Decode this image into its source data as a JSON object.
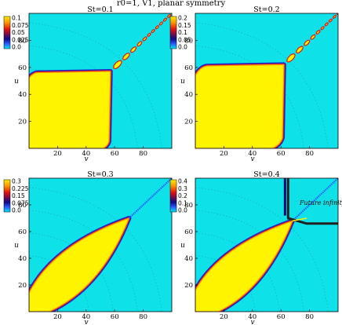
{
  "figure": {
    "title": "r0=1, V1, planar symmetry"
  },
  "chart_data": [
    {
      "type": "heatmap",
      "title": "St=0.1",
      "xlabel": "v",
      "ylabel": "u",
      "xticks": [
        20,
        40,
        60,
        80
      ],
      "yticks": [
        20,
        40,
        60,
        80
      ],
      "xlim": [
        0,
        100
      ],
      "ylim": [
        0,
        100
      ],
      "colorbar": {
        "ticks": [
          "0.1",
          "0.075",
          "0.05",
          "0.025",
          "0.0"
        ],
        "range": [
          0.0,
          0.1
        ]
      },
      "region": {
        "corner": [
          57,
          57
        ],
        "band_start": 5,
        "shape": "square",
        "beads": true
      },
      "annotation": ""
    },
    {
      "type": "heatmap",
      "title": "St=0.2",
      "xlabel": "v",
      "ylabel": "u",
      "xticks": [
        20,
        40,
        60,
        80
      ],
      "yticks": [
        20,
        40,
        60,
        80
      ],
      "xlim": [
        0,
        100
      ],
      "ylim": [
        0,
        100
      ],
      "colorbar": {
        "ticks": [
          "0.2",
          "0.15",
          "0.1",
          "0.05",
          "0.0"
        ],
        "range": [
          0.0,
          0.2
        ]
      },
      "region": {
        "corner": [
          62,
          62
        ],
        "band_start": 8,
        "shape": "square",
        "beads": true
      },
      "annotation": ""
    },
    {
      "type": "heatmap",
      "title": "St=0.3",
      "xlabel": "v",
      "ylabel": "u",
      "xticks": [
        20,
        40,
        60,
        80
      ],
      "yticks": [
        20,
        40,
        60,
        80
      ],
      "xlim": [
        0,
        100
      ],
      "ylim": [
        0,
        100
      ],
      "colorbar": {
        "ticks": [
          "0.3",
          "0.225",
          "0.15",
          "0.075",
          "0.0"
        ],
        "range": [
          0.0,
          0.3
        ]
      },
      "region": {
        "corner": [
          70,
          70
        ],
        "band_start": 14,
        "shape": "wedge",
        "beads": false
      },
      "annotation": ""
    },
    {
      "type": "heatmap",
      "title": "St=0.4",
      "xlabel": "v",
      "ylabel": "u",
      "xticks": [
        20,
        40,
        60,
        80
      ],
      "yticks": [
        20,
        40,
        60,
        80
      ],
      "xlim": [
        0,
        100
      ],
      "ylim": [
        0,
        100
      ],
      "colorbar": {
        "ticks": [
          "0.4",
          "0.3",
          "0.2",
          "0.1",
          "0.0"
        ],
        "range": [
          0.0,
          0.4
        ]
      },
      "region": {
        "corner": [
          68,
          68
        ],
        "band_start": 16,
        "shape": "future",
        "beads": false
      },
      "annotation": "Future infinity"
    }
  ]
}
